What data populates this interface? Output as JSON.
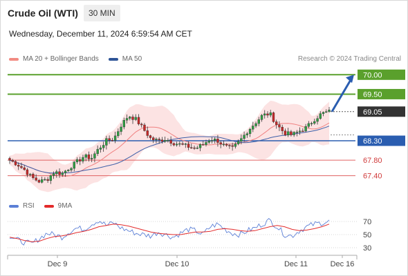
{
  "header": {
    "title": "Crude Oil (WTI)",
    "timeframe": "30 MIN",
    "datetime": "Wednesday, December 11, 2024 6:59:54 AM CET"
  },
  "legend": {
    "items": [
      {
        "label": "MA 20 + Bollinger Bands",
        "color": "#f28b82"
      },
      {
        "label": "MA 50",
        "color": "#2f5597"
      }
    ]
  },
  "credit": "Research © 2024 Trading Central",
  "rsi_legend": {
    "items": [
      {
        "label": "RSI",
        "color": "#5b7fd6"
      },
      {
        "label": "9MA",
        "color": "#e32b2b"
      }
    ]
  },
  "levels": [
    {
      "value": "70.00",
      "price": 70.0,
      "type": "resistance",
      "color": "#5aa02c"
    },
    {
      "value": "69.50",
      "price": 69.5,
      "type": "resistance",
      "color": "#5aa02c"
    },
    {
      "value": "69.05",
      "price": 69.05,
      "type": "current",
      "color": "#333333"
    },
    {
      "value": "68.30",
      "price": 68.3,
      "type": "pivot",
      "color": "#2a5db0"
    },
    {
      "value": "67.80",
      "price": 67.8,
      "type": "support",
      "color": "#e06060"
    },
    {
      "value": "67.40",
      "price": 67.4,
      "type": "support",
      "color": "#e06060"
    }
  ],
  "chart_data": {
    "type": "candlestick",
    "instrument": "Crude Oil (WTI)",
    "interval": "30 MIN",
    "x_labels": [
      "Dec 9",
      "Dec 10",
      "Dec 11",
      "Dec 16"
    ],
    "y_range": [
      67.0,
      70.2
    ],
    "price_path": [
      67.8,
      67.7,
      67.55,
      67.35,
      67.25,
      67.3,
      67.5,
      67.45,
      67.6,
      67.75,
      67.9,
      67.85,
      68.1,
      68.3,
      68.35,
      68.7,
      68.95,
      68.85,
      68.6,
      68.35,
      68.3,
      68.35,
      68.25,
      68.2,
      68.15,
      68.1,
      68.2,
      68.35,
      68.3,
      68.15,
      68.1,
      68.3,
      68.55,
      68.75,
      68.95,
      69.0,
      68.7,
      68.5,
      68.45,
      68.55,
      68.65,
      68.85,
      69.0,
      69.05
    ],
    "rsi": {
      "ticks": [
        70,
        50,
        30
      ],
      "range": [
        20,
        80
      ],
      "rsi_path": [
        48,
        42,
        38,
        36,
        44,
        52,
        50,
        46,
        54,
        60,
        58,
        66,
        72,
        64,
        68,
        60,
        56,
        52,
        50,
        48,
        54,
        50,
        46,
        52,
        58,
        56,
        50,
        62,
        66,
        58,
        52,
        50,
        56,
        60,
        66,
        72,
        62,
        50,
        48,
        56,
        62,
        66,
        68,
        70
      ],
      "ma_path": [
        46,
        44,
        41,
        39,
        40,
        44,
        47,
        48,
        50,
        53,
        55,
        58,
        62,
        64,
        66,
        65,
        63,
        60,
        57,
        54,
        52,
        51,
        50,
        50,
        52,
        54,
        54,
        55,
        58,
        59,
        58,
        56,
        55,
        56,
        59,
        62,
        64,
        62,
        58,
        56,
        57,
        59,
        62,
        66
      ]
    }
  }
}
